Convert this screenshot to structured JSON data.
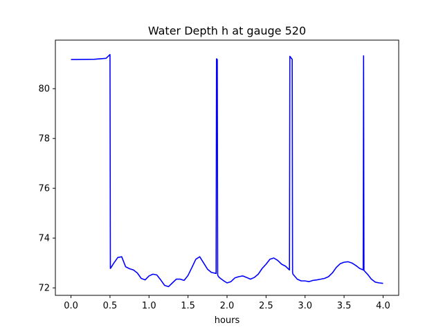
{
  "chart_data": {
    "type": "line",
    "title": "Water Depth h at gauge 520",
    "xlabel": "hours",
    "ylabel": "",
    "xlim": [
      -0.2,
      4.2
    ],
    "ylim": [
      71.7,
      81.95
    ],
    "xticks": [
      0.0,
      0.5,
      1.0,
      1.5,
      2.0,
      2.5,
      3.0,
      3.5,
      4.0
    ],
    "xtick_labels": [
      "0.0",
      "0.5",
      "1.0",
      "1.5",
      "2.0",
      "2.5",
      "3.0",
      "3.5",
      "4.0"
    ],
    "yticks": [
      72,
      74,
      76,
      78,
      80
    ],
    "ytick_labels": [
      "72",
      "74",
      "76",
      "78",
      "80"
    ],
    "grid": false,
    "series": [
      {
        "color": "#0000ff",
        "x": [
          0.0,
          0.3,
          0.45,
          0.5,
          0.505,
          0.51,
          0.55,
          0.6,
          0.65,
          0.7,
          0.75,
          0.8,
          0.85,
          0.9,
          0.95,
          1.0,
          1.05,
          1.1,
          1.15,
          1.2,
          1.25,
          1.3,
          1.35,
          1.4,
          1.45,
          1.5,
          1.55,
          1.6,
          1.65,
          1.7,
          1.75,
          1.8,
          1.86,
          1.865,
          1.875,
          1.88,
          1.885,
          1.9,
          1.95,
          2.0,
          2.05,
          2.1,
          2.15,
          2.2,
          2.25,
          2.3,
          2.35,
          2.4,
          2.45,
          2.5,
          2.55,
          2.6,
          2.65,
          2.7,
          2.75,
          2.8,
          2.805,
          2.81,
          2.835,
          2.84,
          2.845,
          2.9,
          2.95,
          3.0,
          3.05,
          3.1,
          3.15,
          3.2,
          3.25,
          3.3,
          3.35,
          3.4,
          3.45,
          3.5,
          3.55,
          3.6,
          3.65,
          3.7,
          3.745,
          3.75,
          3.755,
          3.8,
          3.85,
          3.9,
          3.95,
          4.0
        ],
        "y": [
          81.17,
          81.18,
          81.22,
          81.37,
          72.78,
          72.8,
          73.0,
          73.22,
          73.25,
          72.85,
          72.77,
          72.72,
          72.6,
          72.38,
          72.32,
          72.48,
          72.55,
          72.52,
          72.32,
          72.1,
          72.05,
          72.2,
          72.35,
          72.35,
          72.3,
          72.5,
          72.82,
          73.15,
          73.25,
          73.0,
          72.75,
          72.62,
          72.58,
          81.2,
          81.17,
          72.52,
          72.48,
          72.42,
          72.3,
          72.2,
          72.25,
          72.4,
          72.45,
          72.48,
          72.42,
          72.35,
          72.42,
          72.55,
          72.78,
          72.95,
          73.15,
          73.2,
          73.1,
          72.95,
          72.87,
          72.72,
          81.3,
          81.28,
          81.18,
          72.62,
          72.55,
          72.35,
          72.28,
          72.28,
          72.25,
          72.3,
          72.32,
          72.35,
          72.38,
          72.45,
          72.6,
          72.82,
          72.97,
          73.03,
          73.05,
          73.0,
          72.9,
          72.78,
          72.72,
          81.32,
          72.7,
          72.55,
          72.35,
          72.23,
          72.2,
          72.18
        ]
      }
    ]
  }
}
